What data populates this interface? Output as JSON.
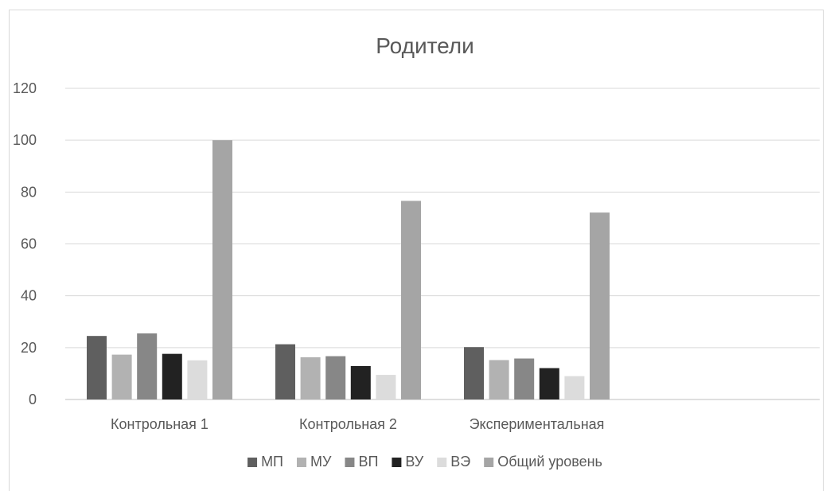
{
  "chart_data": {
    "type": "bar",
    "title": "Родители",
    "categories": [
      "Контрольная 1",
      "Контрольная 2",
      "Экспериментальная"
    ],
    "ylim": [
      0,
      120
    ],
    "yticks": [
      0,
      20,
      40,
      60,
      80,
      100,
      120
    ],
    "grid": true,
    "legend_position": "bottom",
    "series": [
      {
        "name": "МП",
        "color": "#5f5f5f",
        "values": [
          24.5,
          21.3,
          20.2
        ]
      },
      {
        "name": "МУ",
        "color": "#b2b2b2",
        "values": [
          17.3,
          16.3,
          15.2
        ]
      },
      {
        "name": "ВП",
        "color": "#878787",
        "values": [
          25.5,
          16.7,
          15.8
        ]
      },
      {
        "name": "ВУ",
        "color": "#222222",
        "values": [
          17.6,
          12.9,
          12.1
        ]
      },
      {
        "name": "ВЭ",
        "color": "#dcdcdc",
        "values": [
          15.1,
          9.5,
          9.0
        ]
      },
      {
        "name": "Общий уровень",
        "color": "#a5a5a5",
        "values": [
          100,
          76.6,
          72.1
        ]
      }
    ]
  }
}
